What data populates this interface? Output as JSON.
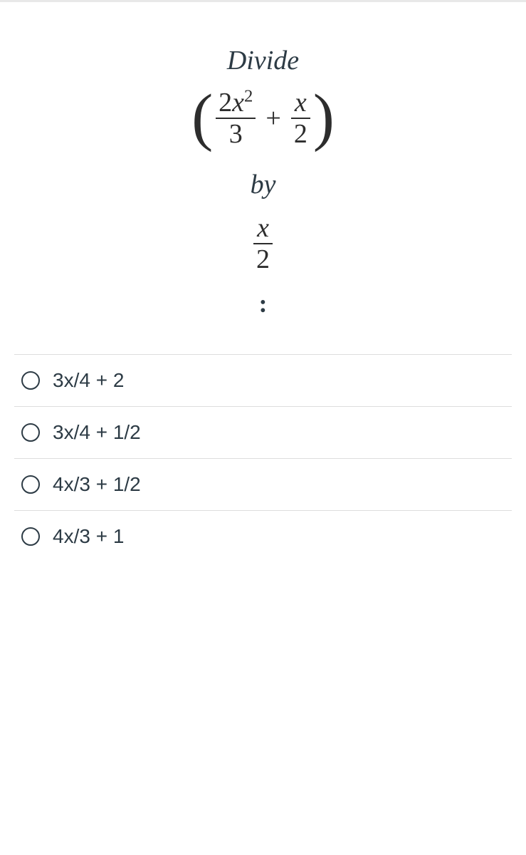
{
  "question": {
    "label_divide": "Divide",
    "label_by": "by",
    "colon": ":",
    "expr": {
      "left_paren": "(",
      "right_paren": ")",
      "term1_num": "2x",
      "term1_sup": "2",
      "term1_den": "3",
      "plus": "+",
      "term2_num": "x",
      "term2_den": "2"
    },
    "divisor": {
      "num": "x",
      "den": "2"
    }
  },
  "options": [
    {
      "label": "3x/4 + 2"
    },
    {
      "label": "3x/4 + 1/2"
    },
    {
      "label": "4x/3 + 1/2"
    },
    {
      "label": "4x/3 + 1"
    }
  ],
  "colors": {
    "text": "#2d3b45",
    "math": "#2d2d2d",
    "divider": "#dddddd",
    "top_divider": "#e8e8e8",
    "background": "#ffffff",
    "radio_border": "#2d3b45"
  },
  "typography": {
    "math_family": "Times New Roman",
    "math_size_pt": 38,
    "option_family": "Helvetica Neue",
    "option_size_pt": 28
  }
}
